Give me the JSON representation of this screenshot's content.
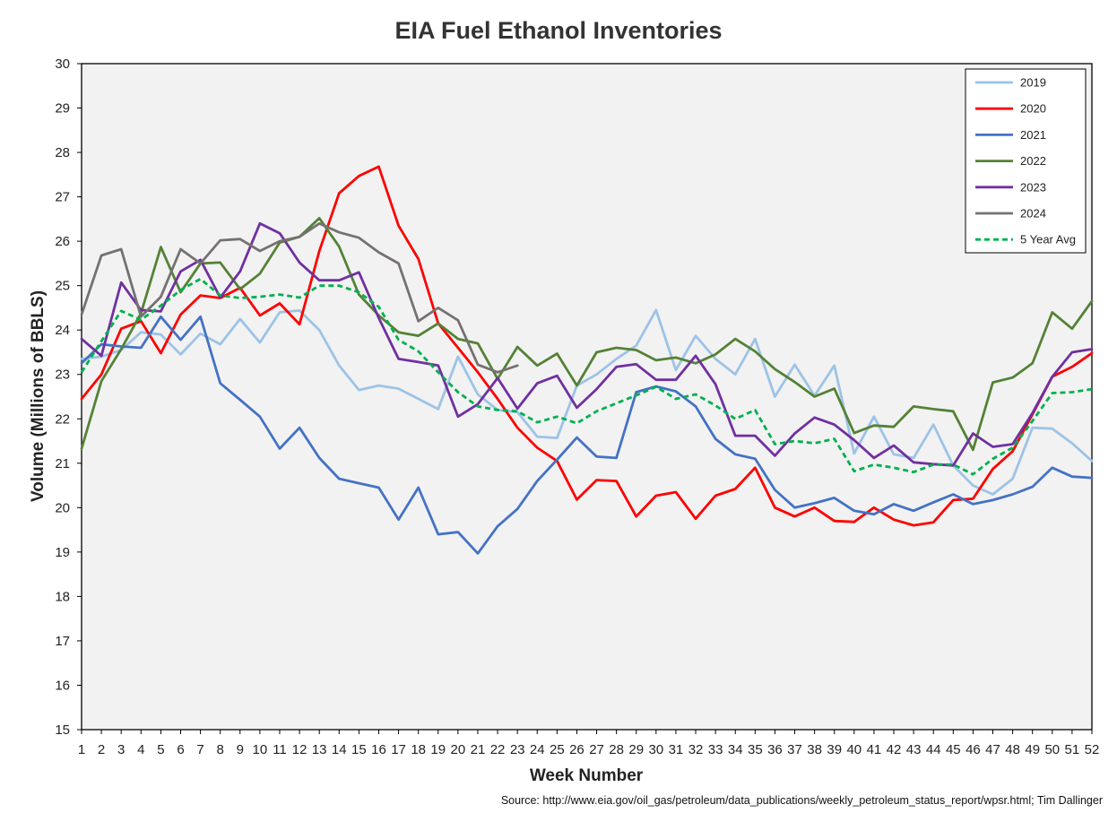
{
  "chart_data": {
    "type": "line",
    "title": "EIA Fuel Ethanol Inventories",
    "xlabel": "Week Number",
    "ylabel": "Volume (Millions of BBLS)",
    "source": "Source: http://www.eia.gov/oil_gas/petroleum/data_publications/weekly_petroleum_status_report/wpsr.html; Tim Dallinger",
    "xlim": [
      1,
      52
    ],
    "ylim": [
      15,
      30
    ],
    "grid": false,
    "legend_position": "top-right",
    "x": [
      1,
      2,
      3,
      4,
      5,
      6,
      7,
      8,
      9,
      10,
      11,
      12,
      13,
      14,
      15,
      16,
      17,
      18,
      19,
      20,
      21,
      22,
      23,
      24,
      25,
      26,
      27,
      28,
      29,
      30,
      31,
      32,
      33,
      34,
      35,
      36,
      37,
      38,
      39,
      40,
      41,
      42,
      43,
      44,
      45,
      46,
      47,
      48,
      49,
      50,
      51,
      52
    ],
    "y_ticks": [
      15,
      16,
      17,
      18,
      19,
      20,
      21,
      22,
      23,
      24,
      25,
      26,
      27,
      28,
      29,
      30
    ],
    "series": [
      {
        "name": "2019",
        "color": "#9dc3e6",
        "dash": false,
        "values": [
          23.35,
          23.4,
          23.55,
          23.95,
          23.9,
          23.45,
          23.92,
          23.68,
          24.25,
          23.72,
          24.4,
          24.44,
          24.0,
          23.2,
          22.65,
          22.75,
          22.68,
          22.45,
          22.22,
          23.4,
          22.55,
          22.2,
          22.15,
          21.6,
          21.57,
          22.75,
          23.0,
          23.35,
          23.65,
          24.45,
          23.1,
          23.87,
          23.35,
          23.0,
          23.8,
          22.5,
          23.22,
          22.52,
          23.2,
          21.22,
          22.05,
          21.2,
          21.12,
          21.87,
          20.95,
          20.5,
          20.3,
          20.65,
          21.8,
          21.78,
          21.45,
          21.05
        ]
      },
      {
        "name": "2020",
        "color": "#ff0000",
        "dash": false,
        "values": [
          22.45,
          23.0,
          24.03,
          24.2,
          23.48,
          24.35,
          24.78,
          24.72,
          24.95,
          24.33,
          24.6,
          24.13,
          25.78,
          27.08,
          27.47,
          27.68,
          26.35,
          25.6,
          24.15,
          23.6,
          23.05,
          22.45,
          21.8,
          21.35,
          21.05,
          20.18,
          20.62,
          20.6,
          19.8,
          20.27,
          20.35,
          19.75,
          20.27,
          20.42,
          20.9,
          20.0,
          19.8,
          20.0,
          19.7,
          19.68,
          20.0,
          19.73,
          19.6,
          19.67,
          20.17,
          20.2,
          20.87,
          21.27,
          22.1,
          22.95,
          23.17,
          23.48
        ]
      },
      {
        "name": "2021",
        "color": "#4472c4",
        "dash": false,
        "values": [
          23.25,
          23.68,
          23.63,
          23.6,
          24.3,
          23.78,
          24.3,
          22.8,
          22.43,
          22.05,
          21.33,
          21.8,
          21.12,
          20.65,
          20.55,
          20.45,
          19.73,
          20.45,
          19.4,
          19.45,
          18.97,
          19.58,
          19.97,
          20.6,
          21.08,
          21.58,
          21.15,
          21.12,
          22.6,
          22.73,
          22.62,
          22.28,
          21.55,
          21.2,
          21.1,
          20.4,
          20.0,
          20.1,
          20.22,
          19.93,
          19.85,
          20.08,
          19.93,
          20.12,
          20.3,
          20.08,
          20.17,
          20.3,
          20.47,
          20.9,
          20.7,
          20.67
        ]
      },
      {
        "name": "2022",
        "color": "#548235",
        "dash": false,
        "values": [
          21.33,
          22.85,
          23.57,
          24.38,
          25.87,
          24.85,
          25.5,
          25.52,
          24.92,
          25.27,
          25.97,
          26.1,
          26.52,
          25.88,
          24.8,
          24.33,
          23.95,
          23.87,
          24.15,
          23.8,
          23.7,
          22.9,
          23.62,
          23.2,
          23.47,
          22.75,
          23.5,
          23.6,
          23.55,
          23.32,
          23.38,
          23.25,
          23.45,
          23.8,
          23.52,
          23.12,
          22.83,
          22.5,
          22.68,
          21.68,
          21.85,
          21.82,
          22.28,
          22.22,
          22.17,
          21.3,
          22.82,
          22.93,
          23.25,
          24.4,
          24.03,
          24.65
        ]
      },
      {
        "name": "2023",
        "color": "#7030a0",
        "dash": false,
        "values": [
          23.8,
          23.42,
          25.07,
          24.45,
          24.42,
          25.32,
          25.58,
          24.73,
          25.32,
          26.4,
          26.18,
          25.52,
          25.12,
          25.12,
          25.3,
          24.27,
          23.35,
          23.28,
          23.2,
          22.05,
          22.33,
          22.92,
          22.23,
          22.8,
          22.97,
          22.25,
          22.67,
          23.17,
          23.23,
          22.88,
          22.88,
          23.42,
          22.78,
          21.62,
          21.62,
          21.17,
          21.67,
          22.03,
          21.87,
          21.52,
          21.12,
          21.4,
          21.02,
          20.98,
          20.95,
          21.67,
          21.37,
          21.43,
          22.13,
          22.95,
          23.5,
          23.57
        ]
      },
      {
        "name": "2024",
        "color": "#767171",
        "dash": false,
        "values": [
          24.35,
          25.68,
          25.82,
          24.3,
          24.75,
          25.82,
          25.5,
          26.02,
          26.05,
          25.78,
          26.0,
          26.1,
          26.4,
          26.2,
          26.08,
          25.75,
          25.5,
          24.2,
          24.5,
          24.22,
          23.22,
          23.05,
          23.2,
          null,
          null,
          null,
          null,
          null,
          null,
          null,
          null,
          null,
          null,
          null,
          null,
          null,
          null,
          null,
          null,
          null,
          null,
          null,
          null,
          null,
          null,
          null,
          null,
          null,
          null,
          null,
          null,
          null
        ]
      },
      {
        "name": "5 Year Avg",
        "color": "#00b050",
        "dash": true,
        "values": [
          23.05,
          23.75,
          24.43,
          24.23,
          24.55,
          24.9,
          25.15,
          24.78,
          24.72,
          24.75,
          24.8,
          24.73,
          25.0,
          25.0,
          24.85,
          24.52,
          23.78,
          23.52,
          23.05,
          22.6,
          22.28,
          22.2,
          22.17,
          21.92,
          22.05,
          21.9,
          22.17,
          22.35,
          22.53,
          22.72,
          22.45,
          22.55,
          22.3,
          22.0,
          22.2,
          21.43,
          21.5,
          21.45,
          21.55,
          20.82,
          20.97,
          20.9,
          20.8,
          20.97,
          20.97,
          20.75,
          21.1,
          21.35,
          21.95,
          22.58,
          22.6,
          22.67
        ]
      }
    ]
  }
}
